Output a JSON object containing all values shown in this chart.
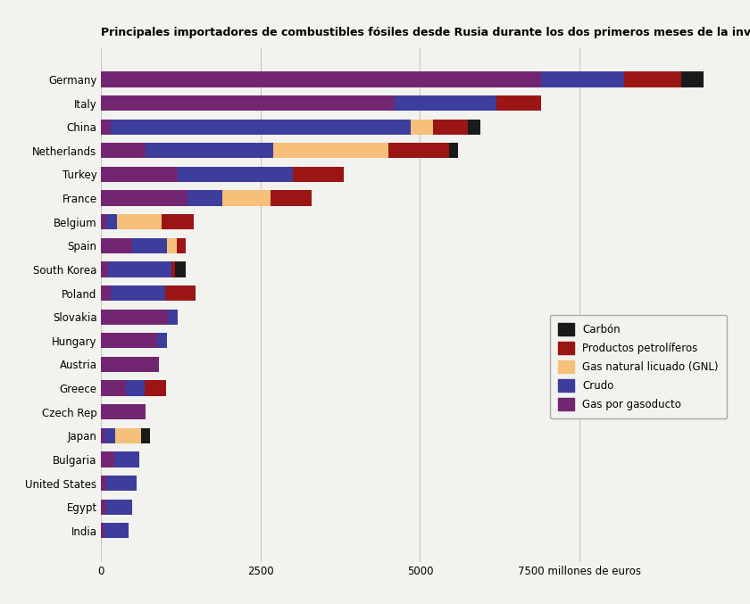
{
  "title": "Principales importadores de combustibles fósiles desde Rusia durante los dos primeros meses de la invasión",
  "xlabel": "millones de euros",
  "categories": [
    "Germany",
    "Italy",
    "China",
    "Netherlands",
    "Turkey",
    "France",
    "Belgium",
    "Spain",
    "South Korea",
    "Poland",
    "Slovakia",
    "Hungary",
    "Austria",
    "Greece",
    "Czech Rep",
    "Japan",
    "Bulgaria",
    "United States",
    "Egypt",
    "India"
  ],
  "segments": {
    "Gas por gasoducto": {
      "color": "#722672",
      "values": [
        6900,
        4600,
        150,
        700,
        1200,
        1350,
        80,
        480,
        100,
        150,
        1050,
        880,
        900,
        380,
        700,
        50,
        200,
        80,
        80,
        50
      ]
    },
    "Crudo": {
      "color": "#3D3D9E",
      "values": [
        1300,
        1600,
        4700,
        2000,
        1800,
        550,
        170,
        550,
        1000,
        850,
        150,
        150,
        0,
        300,
        0,
        170,
        400,
        480,
        400,
        380
      ]
    },
    "Gas natural licuado (GNL)": {
      "color": "#F5C07A",
      "values": [
        0,
        0,
        350,
        1800,
        0,
        750,
        700,
        150,
        0,
        0,
        0,
        0,
        0,
        0,
        0,
        400,
        0,
        0,
        0,
        0
      ]
    },
    "Productos petrolíferos": {
      "color": "#9B1515",
      "values": [
        900,
        700,
        550,
        950,
        800,
        650,
        500,
        150,
        50,
        480,
        0,
        0,
        0,
        330,
        0,
        0,
        0,
        0,
        0,
        0
      ]
    },
    "Carbón": {
      "color": "#1A1A1A",
      "values": [
        350,
        0,
        200,
        150,
        0,
        0,
        0,
        0,
        180,
        0,
        0,
        0,
        0,
        0,
        0,
        150,
        0,
        0,
        0,
        0
      ]
    }
  },
  "segment_order": [
    "Gas por gasoducto",
    "Crudo",
    "Gas natural licuado (GNL)",
    "Productos petrolíferos",
    "Carbón"
  ],
  "legend_order": [
    "Carbón",
    "Productos petrolíferos",
    "Gas natural licuado (GNL)",
    "Crudo",
    "Gas por gasoducto"
  ],
  "xlim": [
    0,
    10000
  ],
  "xticks": [
    0,
    2500,
    5000,
    7500
  ],
  "xtick_labels": [
    "0",
    "2500",
    "5000",
    "7500 millones de euros"
  ],
  "background_color": "#F2F2EE",
  "title_fontsize": 9,
  "tick_fontsize": 8.5,
  "bar_height": 0.65
}
